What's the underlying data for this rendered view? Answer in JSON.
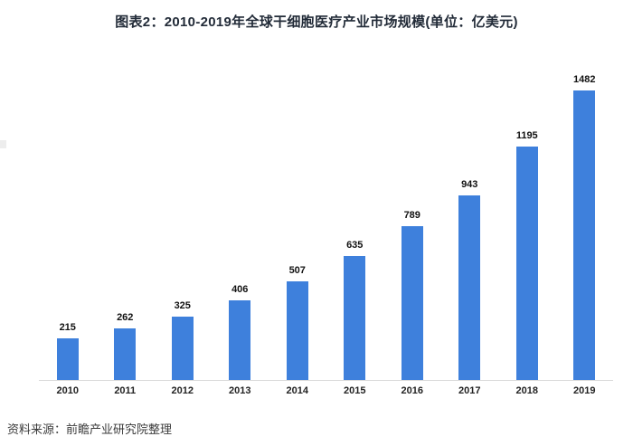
{
  "header": {
    "title": "图表2：2010-2019年全球干细胞医疗产业市场规模(单位：亿美元)"
  },
  "chart_data": {
    "type": "bar",
    "title": "图表2：2010-2019年全球干细胞医疗产业市场规模(单位：亿美元)",
    "categories": [
      "2010",
      "2011",
      "2012",
      "2013",
      "2014",
      "2015",
      "2016",
      "2017",
      "2018",
      "2019"
    ],
    "values": [
      215,
      262,
      325,
      406,
      507,
      635,
      789,
      943,
      1195,
      1482
    ],
    "xlabel": "",
    "ylabel": "",
    "unit": "亿美元",
    "ylim": [
      0,
      1600
    ],
    "grid": false,
    "legend": false,
    "value_labels": true,
    "bar_color": "#3e80dc",
    "axis_line_color": "#d9d9d9",
    "label_color": "#111111",
    "title_color": "#222b38"
  },
  "footer": {
    "source": "资料来源：前瞻产业研究院整理"
  }
}
